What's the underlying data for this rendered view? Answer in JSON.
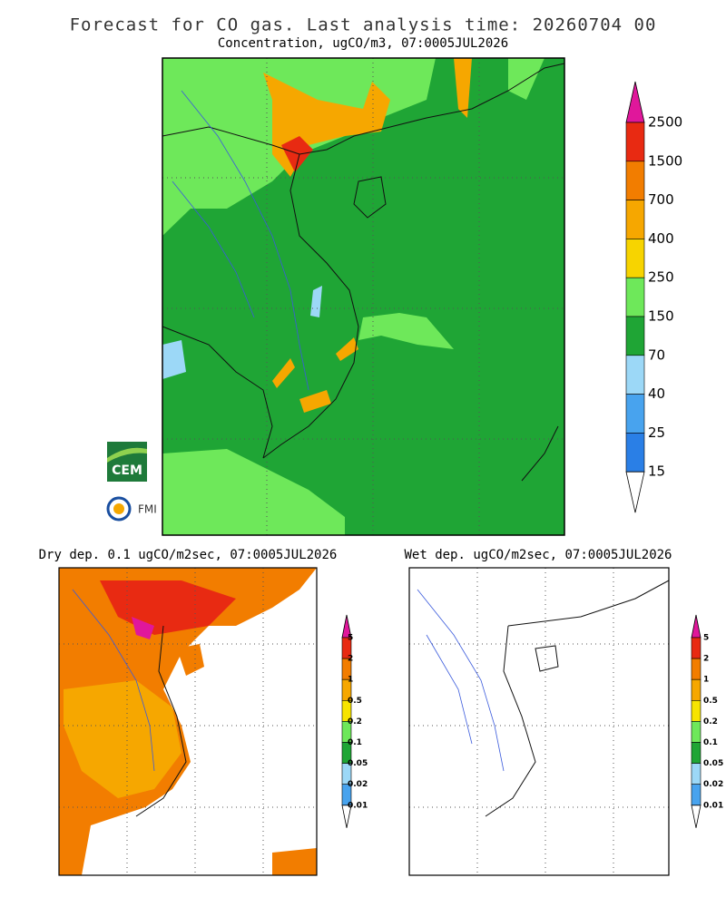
{
  "header": {
    "title": "Forecast for CO gas. Last analysis time: 20260704 00"
  },
  "panels": [
    {
      "title": "Concentration, ugCO/m3, 07:0005JUL2026",
      "colorbar": {
        "labels": [
          2500,
          1500,
          700,
          400,
          250,
          150,
          70,
          40,
          25,
          15
        ],
        "colors": [
          "#e0179b",
          "#e82a12",
          "#f27d00",
          "#f6a700",
          "#f7d400",
          "#6ee85a",
          "#1fa535",
          "#9cd8f7",
          "#48a3ee",
          "#2a7fe6",
          "#ffffff"
        ]
      }
    },
    {
      "title": "Dry dep. 0.1 ugCO/m2sec, 07:0005JUL2026",
      "colorbar": {
        "labels": [
          5,
          2,
          1,
          0.5,
          0.2,
          0.1,
          0.05,
          0.02,
          0.01
        ],
        "colors": [
          "#e0179b",
          "#e82a12",
          "#f27d00",
          "#f6a700",
          "#f7e400",
          "#6ee85a",
          "#1fa535",
          "#9cd8f7",
          "#48a3ee",
          "#ffffff"
        ]
      }
    },
    {
      "title": "Wet dep. ugCO/m2sec, 07:0005JUL2026",
      "colorbar": {
        "labels": [
          5,
          2,
          1,
          0.5,
          0.2,
          0.1,
          0.05,
          0.02,
          0.01
        ],
        "colors": [
          "#e0179b",
          "#e82a12",
          "#f27d00",
          "#f6a700",
          "#f7e400",
          "#6ee85a",
          "#1fa535",
          "#9cd8f7",
          "#48a3ee",
          "#ffffff"
        ]
      }
    }
  ],
  "logos": [
    "CEM",
    "FMI"
  ]
}
